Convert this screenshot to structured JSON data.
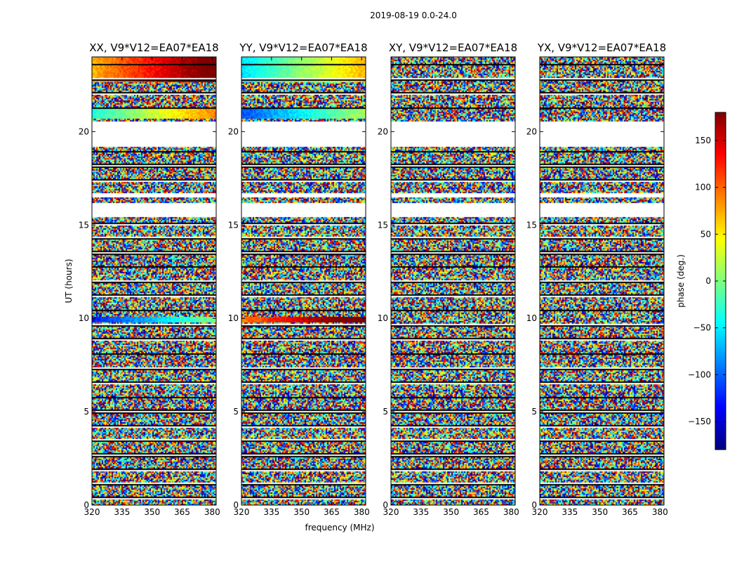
{
  "suptitle": "2019-08-19 0.0-24.0",
  "chart_data": {
    "type": "heatmap",
    "xlabel": "frequency (MHz)",
    "ylabel": "UT (hours)",
    "xlim": [
      320,
      382
    ],
    "ylim": [
      0,
      24
    ],
    "xticks": [
      320,
      335,
      350,
      365,
      380
    ],
    "yticks": [
      0,
      5,
      10,
      15,
      20
    ],
    "panels": [
      {
        "title": "XX, V9*V12=EA07*EA18"
      },
      {
        "title": "YY, V9*V12=EA07*EA18"
      },
      {
        "title": "XY, V9*V12=EA07*EA18"
      },
      {
        "title": "YX, V9*V12=EA07*EA18"
      }
    ],
    "colorbar": {
      "label": "phase (deg.)",
      "range": [
        -180,
        180
      ],
      "ticks": [
        -150,
        -100,
        -50,
        0,
        50,
        100,
        150
      ],
      "colormap": [
        "#00007f",
        "#0000ff",
        "#007fff",
        "#00ffff",
        "#7fff7f",
        "#ffff00",
        "#ff7f00",
        "#ff0000",
        "#7f0000"
      ]
    },
    "flagged_ut_ranges": [
      [
        19.2,
        20.6
      ],
      [
        16.5,
        16.7
      ],
      [
        15.45,
        16.25
      ]
    ]
  }
}
